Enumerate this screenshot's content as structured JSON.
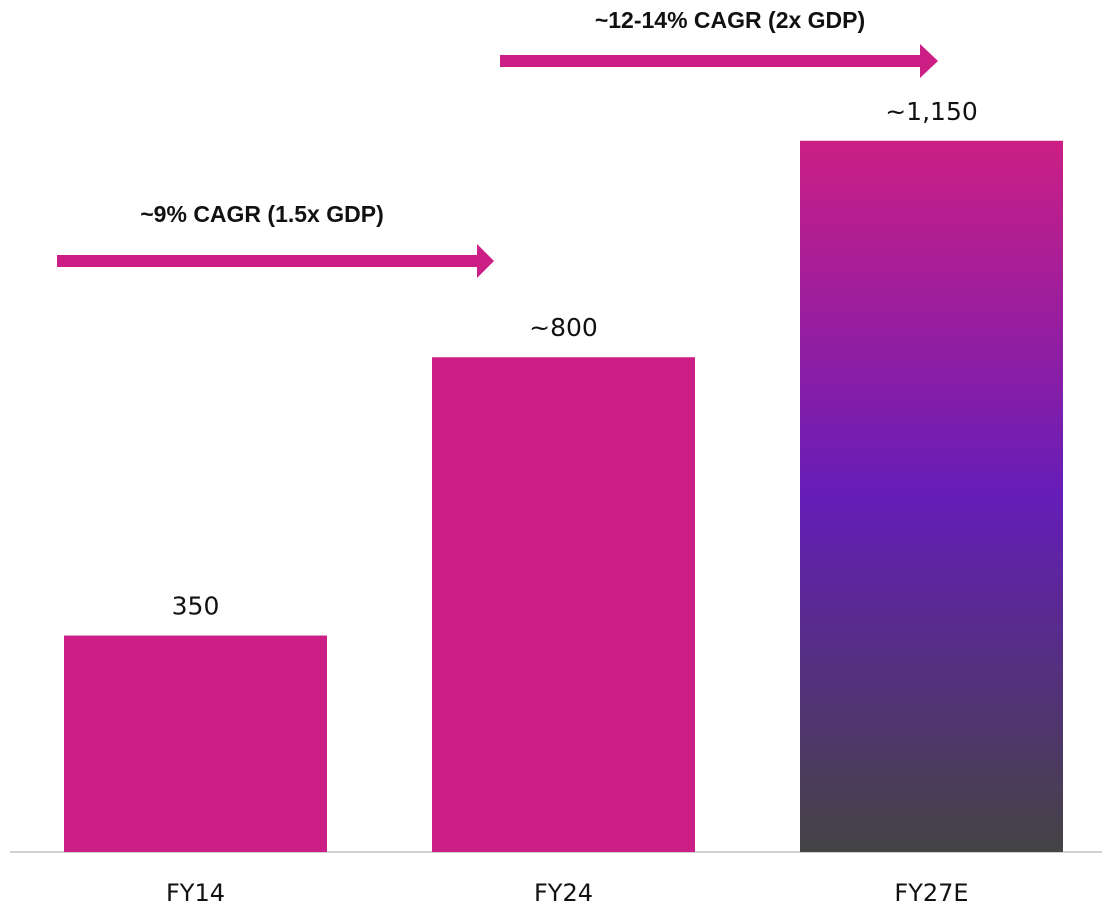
{
  "chart_data": {
    "type": "bar",
    "categories": [
      "FY14",
      "FY24",
      "FY27E"
    ],
    "values": [
      350,
      800,
      1150
    ],
    "value_labels": [
      "350",
      "~800",
      "~1,150"
    ],
    "colors": [
      "#cc1f85",
      "#cc1f85",
      [
        "#cc1f85",
        "#651db8",
        "#444444"
      ]
    ],
    "ylim": [
      0,
      1300
    ],
    "annotations": [
      "~12-14% CAGR (2x GDP)",
      "~9% CAGR (1.5x GDP)"
    ]
  }
}
